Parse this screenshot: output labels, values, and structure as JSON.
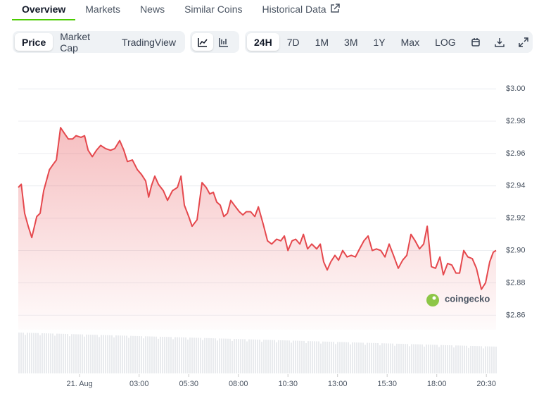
{
  "tabs": [
    "Overview",
    "Markets",
    "News",
    "Similar Coins",
    "Historical Data"
  ],
  "controls": {
    "metrics": [
      "Price",
      "Market Cap",
      "TradingView"
    ],
    "ranges": [
      "24H",
      "7D",
      "1M",
      "3M",
      "1Y",
      "Max",
      "LOG"
    ]
  },
  "watermark": "coingecko",
  "chart_data": {
    "type": "area",
    "x": [
      -3.09,
      -2.94,
      -2.77,
      -2.59,
      -2.41,
      -2.16,
      -1.99,
      -1.81,
      -1.52,
      -1.35,
      -1.17,
      -0.96,
      -0.74,
      -0.57,
      -0.35,
      -0.18,
      0.07,
      0.25,
      0.43,
      0.64,
      0.85,
      1.06,
      1.31,
      1.56,
      1.77,
      2.02,
      2.23,
      2.41,
      2.66,
      2.91,
      3.12,
      3.33,
      3.48,
      3.62,
      3.79,
      3.97,
      4.22,
      4.43,
      4.68,
      4.93,
      5.11,
      5.28,
      5.5,
      5.67,
      5.92,
      6.17,
      6.38,
      6.56,
      6.74,
      6.91,
      7.09,
      7.27,
      7.45,
      7.62,
      7.8,
      8.05,
      8.23,
      8.4,
      8.62,
      8.83,
      9.01,
      9.26,
      9.47,
      9.68,
      9.93,
      10.14,
      10.32,
      10.5,
      10.71,
      10.89,
      11.1,
      11.28,
      11.49,
      11.7,
      11.95,
      12.13,
      12.3,
      12.48,
      12.66,
      12.87,
      13.05,
      13.26,
      13.48,
      13.69,
      13.9,
      14.11,
      14.33,
      14.54,
      14.75,
      14.96,
      15.18,
      15.39,
      15.6,
      15.82,
      16.06,
      16.28,
      16.49,
      16.7,
      16.91,
      17.13,
      17.34,
      17.52,
      17.73,
      17.94,
      18.16,
      18.33,
      18.55,
      18.76,
      18.97,
      19.15,
      19.36,
      19.57,
      19.79,
      20.0,
      20.25,
      20.46,
      20.67,
      20.85,
      20.99
    ],
    "values": [
      2.939,
      2.941,
      2.923,
      2.915,
      2.908,
      2.921,
      2.923,
      2.937,
      2.95,
      2.953,
      2.956,
      2.976,
      2.972,
      2.969,
      2.969,
      2.971,
      2.97,
      2.971,
      2.962,
      2.958,
      2.962,
      2.965,
      2.963,
      2.962,
      2.963,
      2.968,
      2.962,
      2.955,
      2.956,
      2.95,
      2.947,
      2.943,
      2.933,
      2.94,
      2.946,
      2.941,
      2.937,
      2.931,
      2.937,
      2.939,
      2.946,
      2.928,
      2.921,
      2.915,
      2.919,
      2.942,
      2.939,
      2.935,
      2.936,
      2.93,
      2.928,
      2.921,
      2.923,
      2.931,
      2.928,
      2.924,
      2.922,
      2.924,
      2.924,
      2.921,
      2.927,
      2.916,
      2.906,
      2.904,
      2.907,
      2.906,
      2.909,
      2.9,
      2.906,
      2.907,
      2.904,
      2.91,
      2.901,
      2.904,
      2.901,
      2.904,
      2.893,
      2.888,
      2.893,
      2.897,
      2.894,
      2.9,
      2.896,
      2.897,
      2.896,
      2.901,
      2.906,
      2.909,
      2.9,
      2.901,
      2.9,
      2.896,
      2.904,
      2.897,
      2.889,
      2.894,
      2.897,
      2.91,
      2.906,
      2.901,
      2.904,
      2.915,
      2.89,
      2.889,
      2.896,
      2.885,
      2.892,
      2.891,
      2.886,
      2.886,
      2.9,
      2.896,
      2.895,
      2.889,
      2.876,
      2.88,
      2.893,
      2.899,
      2.9
    ],
    "color": "#e5484d",
    "xlim": [
      -3.09,
      20.99
    ],
    "xticks": [
      {
        "value": 0,
        "label": "21. Aug"
      },
      {
        "value": 3,
        "label": "03:00"
      },
      {
        "value": 5.5,
        "label": "05:30"
      },
      {
        "value": 8,
        "label": "08:00"
      },
      {
        "value": 10.5,
        "label": "10:30"
      },
      {
        "value": 13,
        "label": "13:00"
      },
      {
        "value": 15.5,
        "label": "15:30"
      },
      {
        "value": 18,
        "label": "18:00"
      },
      {
        "value": 20.5,
        "label": "20:30"
      }
    ],
    "ylim": [
      2.851,
      3.007
    ],
    "yticks": [
      {
        "value": 2.86,
        "label": "$2.86"
      },
      {
        "value": 2.88,
        "label": "$2.88"
      },
      {
        "value": 2.9,
        "label": "$2.90"
      },
      {
        "value": 2.92,
        "label": "$2.92"
      },
      {
        "value": 2.94,
        "label": "$2.94"
      },
      {
        "value": 2.96,
        "label": "$2.96"
      },
      {
        "value": 2.98,
        "label": "$2.98"
      },
      {
        "value": 3.0,
        "label": "$3.00"
      }
    ],
    "grid": true
  }
}
